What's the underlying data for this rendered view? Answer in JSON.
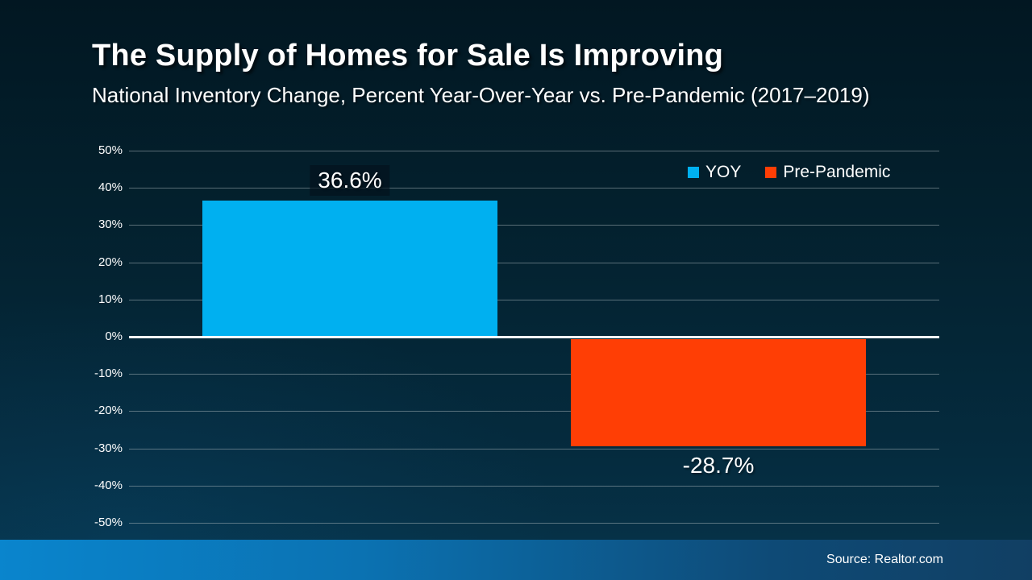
{
  "header": {
    "title": "The Supply of Homes for Sale Is Improving",
    "subtitle": "National Inventory Change, Percent Year-Over-Year vs. Pre-Pandemic (2017–2019)"
  },
  "chart_data": {
    "type": "bar",
    "categories": [
      "YOY",
      "Pre-Pandemic"
    ],
    "values": [
      36.6,
      -28.7
    ],
    "value_labels": [
      "36.6%",
      "-28.7%"
    ],
    "series_colors": [
      "#00b0f0",
      "#ff3e05"
    ],
    "title": "The Supply of Homes for Sale Is Improving",
    "xlabel": "",
    "ylabel": "",
    "ylim": [
      -50,
      50
    ],
    "ytick_step": 10,
    "ytick_labels": [
      "50%",
      "40%",
      "30%",
      "20%",
      "10%",
      "0%",
      "-10%",
      "-20%",
      "-30%",
      "-40%",
      "-50%"
    ],
    "grid": true,
    "legend_position": "top-right"
  },
  "legend": {
    "items": [
      {
        "label": "YOY",
        "color": "#00b0f0"
      },
      {
        "label": "Pre-Pandemic",
        "color": "#ff3e05"
      }
    ]
  },
  "footer": {
    "source": "Source: Realtor.com"
  },
  "colors": {
    "background_top": "#021722",
    "background_bottom": "#06344b",
    "gridline": "rgba(158,173,178,0.55)",
    "zero_axis": "#ffffff",
    "footer_left": "#0a85cd",
    "footer_right": "#113f63",
    "text": "#ffffff"
  }
}
